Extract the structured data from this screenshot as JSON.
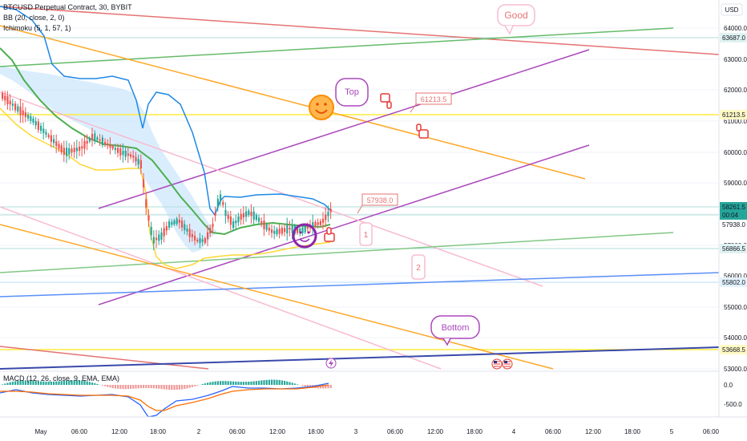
{
  "header": {
    "symbol_line": "BTCUSD Perpetual Contract, 30, BYBIT",
    "bb_line": "BB (20, close, 2, 0)",
    "ichimoku_line": "Ichimoku (5, 1, 57, 1)",
    "currency": "USD"
  },
  "macd_legend": "MACD (12, 26, close, 9, EMA, EMA)",
  "price_axis": [
    "64000.0",
    "63000.0",
    "62000.0",
    "61000.0",
    "60000.0",
    "59000.0",
    "58000.0",
    "57000.0",
    "56000.0",
    "55000.0",
    "54000.0",
    "53000.0"
  ],
  "price_tags": [
    {
      "text": "63687.0",
      "color": "#e0f2f1",
      "fg": "#131722"
    },
    {
      "text": "61213.5",
      "color": "#fff9c4",
      "fg": "#131722"
    },
    {
      "text": "58261.5",
      "color": "#26a69a",
      "fg": "#131722"
    },
    {
      "text": "00:04",
      "color": "#26a69a",
      "fg": "#131722"
    },
    {
      "text": "57938.0",
      "color": "#ffffff",
      "fg": "#131722"
    },
    {
      "text": "56866.5",
      "color": "#e0f2f1",
      "fg": "#131722"
    },
    {
      "text": "55802.0",
      "color": "#e3f2fd",
      "fg": "#131722"
    },
    {
      "text": "53668.5",
      "color": "#fff9c4",
      "fg": "#131722"
    }
  ],
  "macd_axis": [
    "0.0",
    "-500.0"
  ],
  "time_axis": [
    "May",
    "06:00",
    "12:00",
    "18:00",
    "2",
    "06:00",
    "12:00",
    "18:00",
    "3",
    "06:00",
    "12:00",
    "18:00",
    "4",
    "06:00",
    "12:00",
    "18:00",
    "5",
    "06:00"
  ],
  "annotations": {
    "good": "Good",
    "top": "Top",
    "bottom": "Bottom",
    "label_61213": "61213.5",
    "label_57938": "57938.0",
    "num_1": "1",
    "num_2": "2"
  },
  "icons": [
    "smile-emoji-icon",
    "thumbs-down-icon",
    "thumbs-up-icon",
    "lightning-icon",
    "us-flag-icon"
  ],
  "colors": {
    "up": "#26a69a",
    "down": "#ef5350",
    "purple": "#ab47bc",
    "orange": "#ffa726",
    "green": "#66bb6a",
    "red": "#e57373",
    "pink": "#f8bbd0",
    "blue": "#5b8ff9",
    "yellow": "#ffeb3b",
    "bb_fill": "#bbdefb"
  }
}
